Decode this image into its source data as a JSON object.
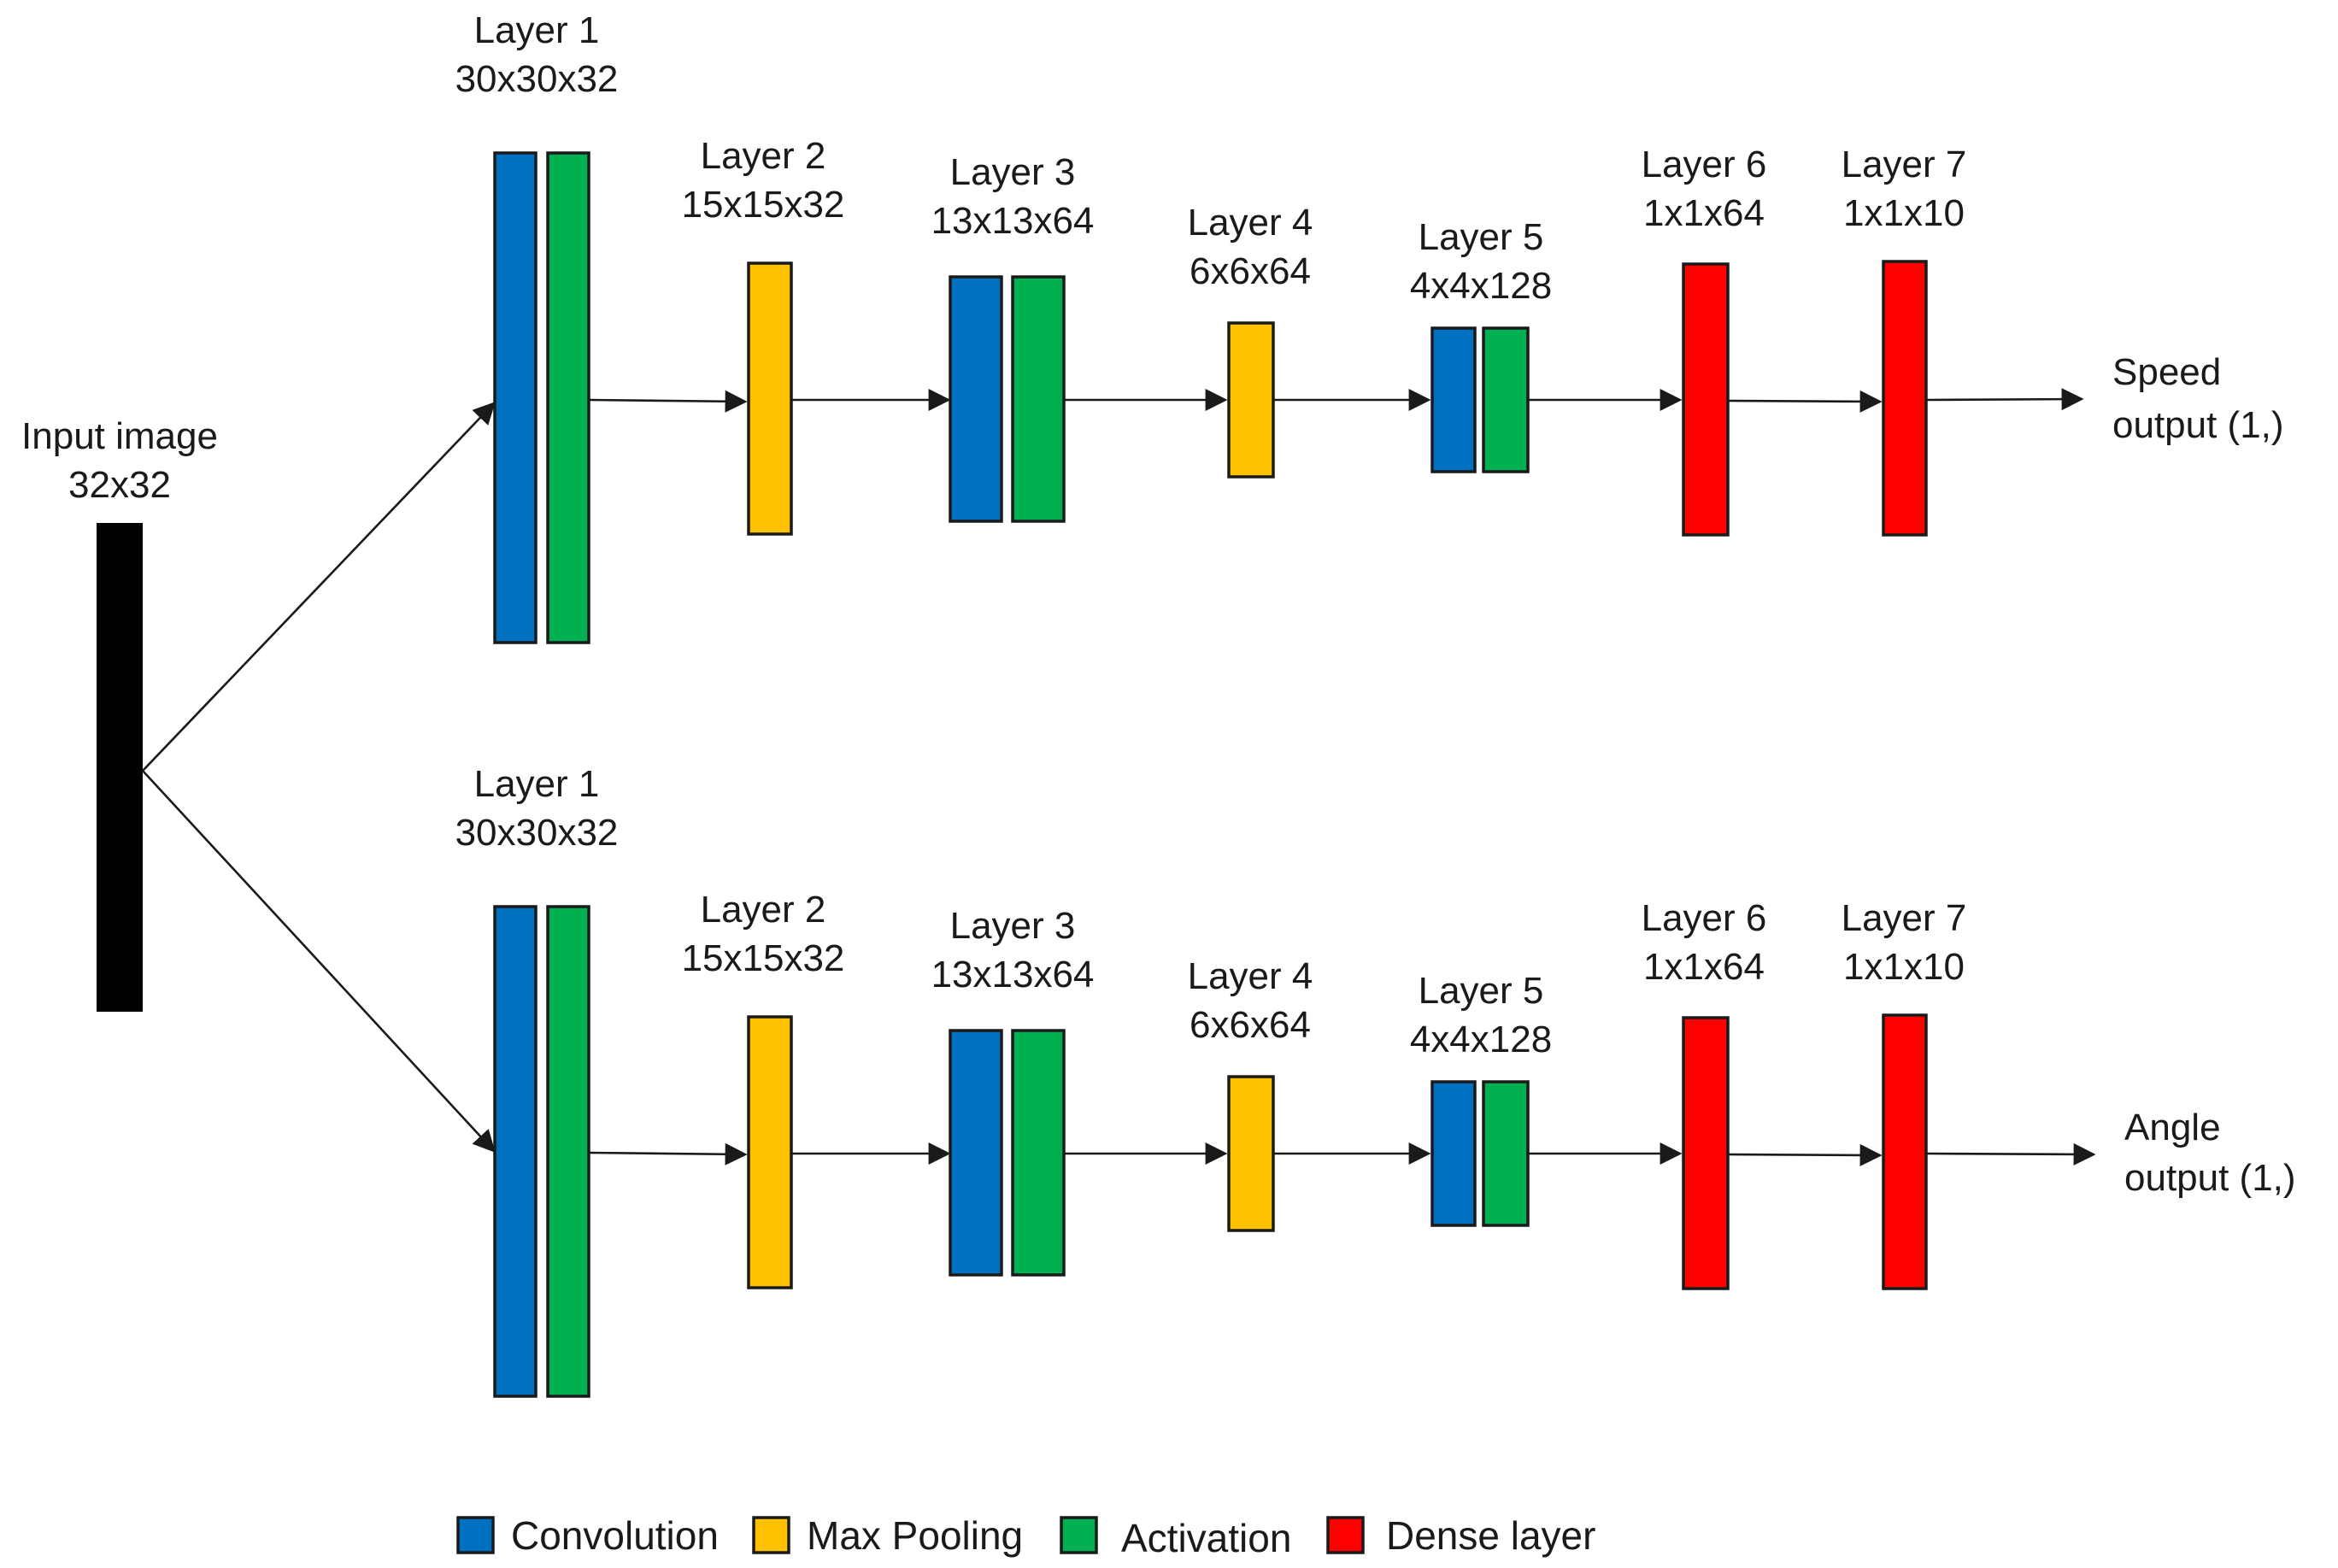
{
  "colors": {
    "convolution": "#0070c0",
    "max_pooling": "#ffc000",
    "activation": "#00b050",
    "dense": "#ff0000",
    "input": "#000000"
  },
  "input": {
    "line1": "Input image",
    "line2": "32x32"
  },
  "branches": [
    {
      "output": {
        "line1": "Speed",
        "line2": "output (1,)"
      },
      "layers": [
        {
          "name": "Layer 1",
          "dims": "30x30x32"
        },
        {
          "name": "Layer 2",
          "dims": "15x15x32"
        },
        {
          "name": "Layer 3",
          "dims": "13x13x64"
        },
        {
          "name": "Layer 4",
          "dims": "6x6x64"
        },
        {
          "name": "Layer 5",
          "dims": "4x4x128"
        },
        {
          "name": "Layer 6",
          "dims": "1x1x64"
        },
        {
          "name": "Layer 7",
          "dims": "1x1x10"
        }
      ]
    },
    {
      "output": {
        "line1": "Angle",
        "line2": "output (1,)"
      },
      "layers": [
        {
          "name": "Layer 1",
          "dims": "30x30x32"
        },
        {
          "name": "Layer 2",
          "dims": "15x15x32"
        },
        {
          "name": "Layer 3",
          "dims": "13x13x64"
        },
        {
          "name": "Layer 4",
          "dims": "6x6x64"
        },
        {
          "name": "Layer 5",
          "dims": "4x4x128"
        },
        {
          "name": "Layer 6",
          "dims": "1x1x64"
        },
        {
          "name": "Layer 7",
          "dims": "1x1x10"
        }
      ]
    }
  ],
  "legend": [
    {
      "label": "Convolution",
      "color": "#0070c0"
    },
    {
      "label": "Max Pooling",
      "color": "#ffc000"
    },
    {
      "label": "Activation",
      "color": "#00b050"
    },
    {
      "label": "Dense layer",
      "color": "#ff0000"
    }
  ]
}
